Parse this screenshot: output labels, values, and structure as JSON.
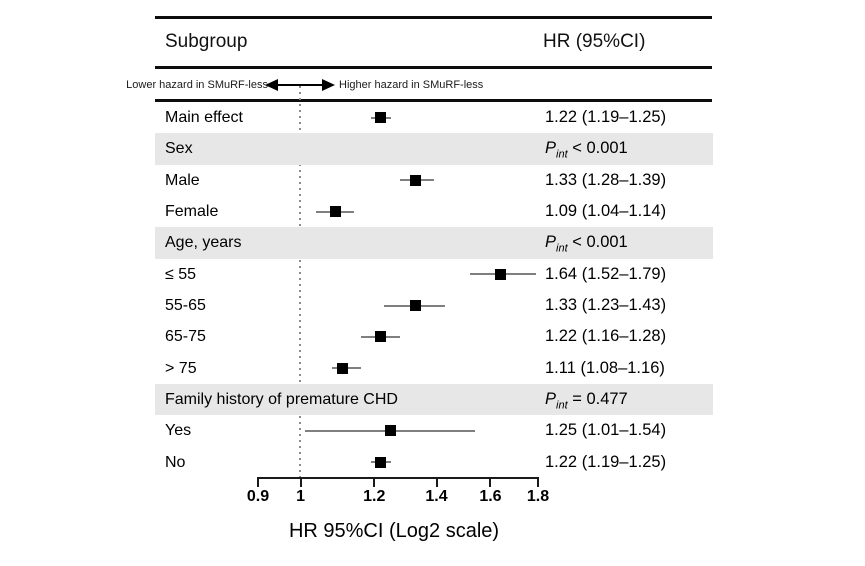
{
  "header": {
    "subgroup_col": "Subgroup",
    "hr_col": "HR (95%CI)"
  },
  "direction_note": {
    "left": "Lower hazard in SMuRF-less",
    "right": "Higher hazard in SMuRF-less"
  },
  "colors": {
    "band": "#e7e7e7",
    "marker": "#000000",
    "ci_line": "#7f7f7f",
    "rule": "#0d0d0d",
    "ref_line": "#8c8c8c",
    "text": "#000000"
  },
  "chart_data": {
    "type": "forest",
    "xlabel": "HR 95%CI (Log2 scale)",
    "x_scale": "log2",
    "reference_line": 1,
    "x_ticks": [
      0.9,
      1,
      1.2,
      1.4,
      1.6,
      1.8
    ],
    "x_tick_labels": [
      "0.9",
      "1",
      "1.2",
      "1.4",
      "1.6",
      "1.8"
    ],
    "xlim": [
      0.85,
      1.9
    ],
    "legend_position": "none",
    "grid": false,
    "rows": [
      {
        "label": "Main effect",
        "type": "estimate",
        "hr": 1.22,
        "ci_low": 1.19,
        "ci_high": 1.25,
        "display": "1.22 (1.19–1.25)",
        "shaded": false
      },
      {
        "label": "Sex",
        "type": "group",
        "p_symbol": "P",
        "p_sub": "int",
        "p_text": " < 0.001",
        "shaded": true
      },
      {
        "label": "Male",
        "type": "estimate",
        "hr": 1.33,
        "ci_low": 1.28,
        "ci_high": 1.39,
        "display": "1.33 (1.28–1.39)",
        "shaded": false
      },
      {
        "label": "Female",
        "type": "estimate",
        "hr": 1.09,
        "ci_low": 1.04,
        "ci_high": 1.14,
        "display": "1.09 (1.04–1.14)",
        "shaded": false
      },
      {
        "label": "Age, years",
        "type": "group",
        "p_symbol": "P",
        "p_sub": "int",
        "p_text": " < 0.001",
        "shaded": true
      },
      {
        "label": "≤ 55",
        "type": "estimate",
        "hr": 1.64,
        "ci_low": 1.52,
        "ci_high": 1.79,
        "display": "1.64 (1.52–1.79)",
        "shaded": false
      },
      {
        "label": "55-65",
        "type": "estimate",
        "hr": 1.33,
        "ci_low": 1.23,
        "ci_high": 1.43,
        "display": "1.33 (1.23–1.43)",
        "shaded": false
      },
      {
        "label": "65-75",
        "type": "estimate",
        "hr": 1.22,
        "ci_low": 1.16,
        "ci_high": 1.28,
        "display": "1.22 (1.16–1.28)",
        "shaded": false
      },
      {
        "label": "> 75",
        "type": "estimate",
        "hr": 1.11,
        "ci_low": 1.08,
        "ci_high": 1.16,
        "display": "1.11 (1.08–1.16)",
        "shaded": false
      },
      {
        "label": "Family history of premature CHD",
        "type": "group",
        "p_symbol": "P",
        "p_sub": "int",
        "p_text": " = 0.477",
        "shaded": true
      },
      {
        "label": "Yes",
        "type": "estimate",
        "hr": 1.25,
        "ci_low": 1.01,
        "ci_high": 1.54,
        "display": "1.25 (1.01–1.54)",
        "shaded": false
      },
      {
        "label": "No",
        "type": "estimate",
        "hr": 1.22,
        "ci_low": 1.19,
        "ci_high": 1.25,
        "display": "1.22 (1.19–1.25)",
        "shaded": false
      }
    ]
  }
}
